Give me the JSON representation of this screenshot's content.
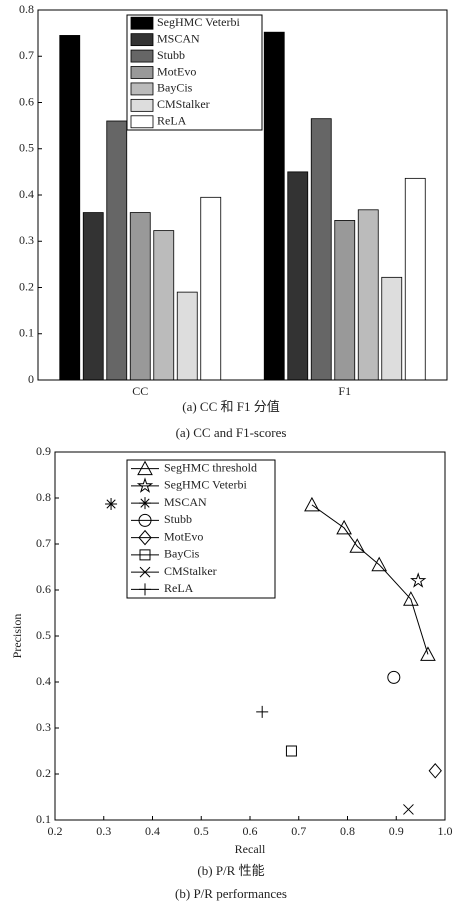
{
  "chart_data": [
    {
      "type": "bar",
      "categories": [
        "CC",
        "F1"
      ],
      "series": [
        {
          "name": "SegHMC Veterbi",
          "color": "#000000",
          "values": [
            0.745,
            0.752
          ]
        },
        {
          "name": "MSCAN",
          "color": "#333333",
          "values": [
            0.362,
            0.45
          ]
        },
        {
          "name": "Stubb",
          "color": "#666666",
          "values": [
            0.56,
            0.565
          ]
        },
        {
          "name": "MotEvo",
          "color": "#999999",
          "values": [
            0.362,
            0.345
          ]
        },
        {
          "name": "BayCis",
          "color": "#bbbbbb",
          "values": [
            0.323,
            0.368
          ]
        },
        {
          "name": "CMStalker",
          "color": "#dddddd",
          "values": [
            0.19,
            0.222
          ]
        },
        {
          "name": "ReLA",
          "color": "#ffffff",
          "values": [
            0.395,
            0.436
          ]
        }
      ],
      "ylim": [
        0,
        0.8
      ],
      "yticks": [
        0,
        0.1,
        0.2,
        0.3,
        0.4,
        0.5,
        0.6,
        0.7,
        0.8
      ],
      "legend": "top",
      "captions": [
        "(a) CC 和 F1 分值",
        "(a) CC and F1-scores"
      ]
    },
    {
      "type": "scatter",
      "xlabel": "Recall",
      "ylabel": "Precision",
      "series": [
        {
          "name": "SegHMC threshold",
          "marker": "triangle",
          "line": true,
          "color": "#000000",
          "x": [
            0.727,
            0.793,
            0.82,
            0.865,
            0.93,
            0.965
          ],
          "values": [
            0.785,
            0.735,
            0.695,
            0.655,
            0.58,
            0.46
          ]
        },
        {
          "name": "SegHMC Veterbi",
          "marker": "star",
          "color": "#000000",
          "x": [
            0.945
          ],
          "values": [
            0.62
          ]
        },
        {
          "name": "MSCAN",
          "marker": "asterisk",
          "color": "#000000",
          "x": [
            0.315
          ],
          "values": [
            0.787
          ]
        },
        {
          "name": "Stubb",
          "marker": "circle",
          "color": "#000000",
          "x": [
            0.895
          ],
          "values": [
            0.41
          ]
        },
        {
          "name": "MotEvo",
          "marker": "diamond",
          "color": "#000000",
          "x": [
            0.98
          ],
          "values": [
            0.207
          ]
        },
        {
          "name": "BayCis",
          "marker": "square",
          "color": "#000000",
          "x": [
            0.685
          ],
          "values": [
            0.25
          ]
        },
        {
          "name": "CMStalker",
          "marker": "x",
          "color": "#000000",
          "x": [
            0.925
          ],
          "values": [
            0.123
          ]
        },
        {
          "name": "ReLA",
          "marker": "plus",
          "color": "#000000",
          "x": [
            0.625
          ],
          "values": [
            0.335
          ]
        }
      ],
      "xlim": [
        0.2,
        1.0
      ],
      "xticks": [
        0.2,
        0.3,
        0.4,
        0.5,
        0.6,
        0.7,
        0.8,
        0.9,
        {
          "value": 1.0,
          "label": "1.0"
        }
      ],
      "ylim": [
        0.1,
        0.9
      ],
      "yticks": [
        0.1,
        0.2,
        0.3,
        0.4,
        0.5,
        0.6,
        0.7,
        0.8,
        0.9
      ],
      "legend": "top-left",
      "captions": [
        "(b) P/R 性能",
        "(b) P/R performances"
      ]
    }
  ]
}
